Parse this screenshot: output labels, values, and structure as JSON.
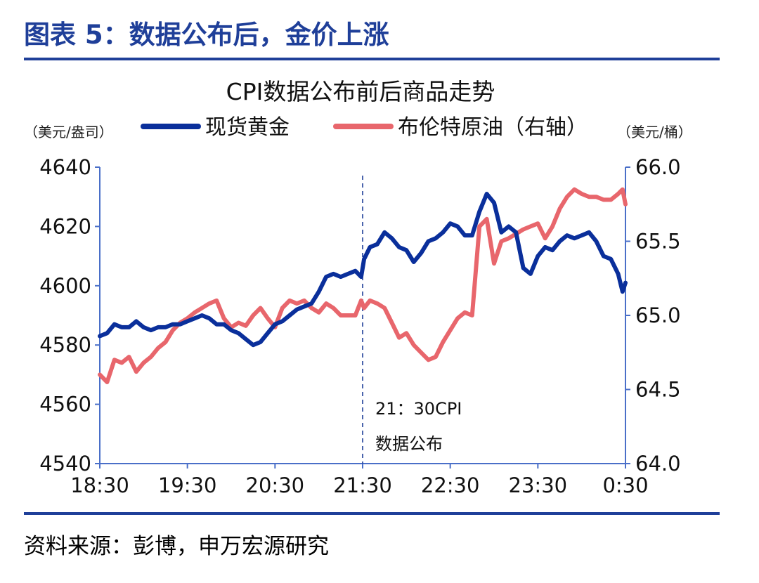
{
  "figure_title": "图表 5：数据公布后，金价上涨",
  "source": "资料来源：彭博，申万宏源研究",
  "colors": {
    "gold": "#0a2f9b",
    "brent": "#e8666c",
    "axis": "#4a6fc8",
    "header": "#1f3f99"
  },
  "chart_data": {
    "type": "line",
    "title": "CPI数据公布前后商品走势",
    "y_left_label": "（美元/盎司）",
    "y_right_label": "（美元/桶）",
    "y_left_lim": [
      4540,
      4640
    ],
    "y_right_lim": [
      64.0,
      66.0
    ],
    "y_left_ticks": [
      "4640",
      "4620",
      "4600",
      "4580",
      "4560",
      "4540"
    ],
    "y_right_ticks": [
      "66.0",
      "65.5",
      "65.0",
      "64.5",
      "64.0"
    ],
    "x_ticks": [
      "18:30",
      "19:30",
      "20:30",
      "21:30",
      "22:30",
      "23:30",
      "0:30"
    ],
    "x_range_minutes": [
      0,
      360
    ],
    "grid": false,
    "legend_position": "top",
    "annotation": {
      "x_minutes": 180,
      "line1": "21：30CPI",
      "line2": "数据公布"
    },
    "series": [
      {
        "name": "现货黄金",
        "axis": "left",
        "x": [
          0,
          5,
          10,
          15,
          20,
          25,
          30,
          35,
          40,
          45,
          50,
          55,
          60,
          65,
          70,
          75,
          80,
          85,
          90,
          95,
          100,
          105,
          110,
          115,
          120,
          125,
          130,
          135,
          140,
          145,
          150,
          155,
          160,
          165,
          170,
          175,
          179,
          181,
          185,
          190,
          195,
          200,
          205,
          210,
          215,
          220,
          225,
          230,
          235,
          240,
          245,
          250,
          255,
          260,
          265,
          270,
          275,
          280,
          285,
          290,
          295,
          300,
          305,
          310,
          315,
          320,
          325,
          330,
          335,
          340,
          345,
          350,
          355,
          358,
          360
        ],
        "values": [
          4583,
          4584,
          4587,
          4586,
          4586,
          4588,
          4586,
          4585,
          4586,
          4586,
          4587,
          4587,
          4588,
          4589,
          4590,
          4589,
          4587,
          4587,
          4585,
          4584,
          4582,
          4580,
          4581,
          4584,
          4587,
          4588,
          4590,
          4592,
          4593,
          4594,
          4598,
          4603,
          4604,
          4603,
          4604,
          4605,
          4603,
          4609,
          4613,
          4614,
          4618,
          4616,
          4613,
          4612,
          4608,
          4611,
          4615,
          4616,
          4618,
          4621,
          4620,
          4617,
          4617,
          4625,
          4631,
          4628,
          4618,
          4620,
          4618,
          4606,
          4604,
          4610,
          4613,
          4612,
          4615,
          4617,
          4616,
          4617,
          4618,
          4615,
          4610,
          4609,
          4604,
          4598,
          4601
        ]
      },
      {
        "name": "布伦特原油（右轴）",
        "axis": "right",
        "x": [
          0,
          5,
          10,
          15,
          20,
          25,
          30,
          35,
          40,
          45,
          50,
          55,
          60,
          65,
          70,
          75,
          80,
          85,
          90,
          95,
          100,
          105,
          110,
          115,
          120,
          125,
          130,
          135,
          140,
          145,
          150,
          155,
          160,
          165,
          170,
          175,
          179,
          181,
          185,
          190,
          195,
          200,
          205,
          210,
          215,
          220,
          225,
          230,
          235,
          240,
          245,
          250,
          255,
          260,
          265,
          270,
          275,
          280,
          285,
          290,
          295,
          300,
          305,
          310,
          315,
          320,
          325,
          330,
          335,
          340,
          345,
          350,
          355,
          358,
          360
        ],
        "values": [
          64.6,
          64.55,
          64.7,
          64.68,
          64.72,
          64.62,
          64.68,
          64.72,
          64.78,
          64.82,
          64.9,
          64.95,
          64.98,
          65.02,
          65.05,
          65.08,
          65.1,
          64.98,
          64.92,
          64.95,
          64.93,
          65.0,
          65.05,
          64.98,
          64.92,
          65.05,
          65.1,
          65.08,
          65.1,
          65.05,
          65.02,
          65.08,
          65.05,
          65.0,
          65.0,
          65.0,
          65.1,
          65.05,
          65.1,
          65.08,
          65.05,
          64.95,
          64.85,
          64.88,
          64.8,
          64.75,
          64.7,
          64.72,
          64.82,
          64.9,
          64.98,
          65.02,
          65.0,
          65.6,
          65.65,
          65.35,
          65.5,
          65.52,
          65.55,
          65.58,
          65.6,
          65.62,
          65.52,
          65.6,
          65.72,
          65.8,
          65.85,
          65.82,
          65.8,
          65.8,
          65.78,
          65.78,
          65.82,
          65.85,
          65.75
        ]
      }
    ]
  }
}
